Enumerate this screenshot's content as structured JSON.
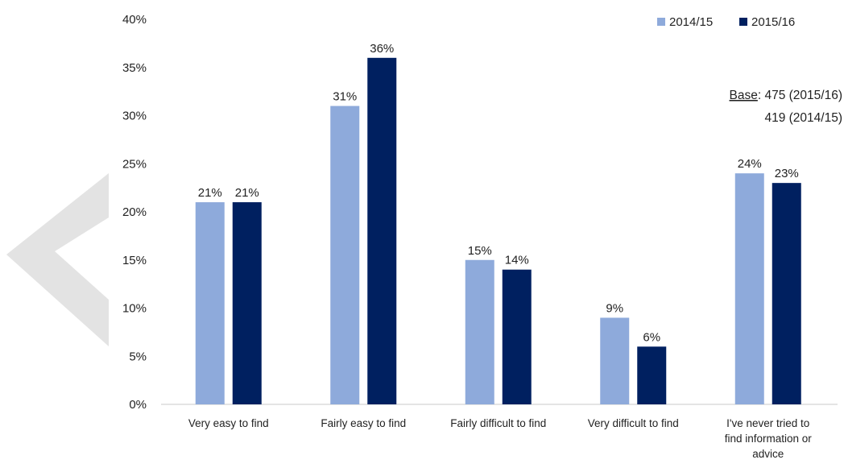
{
  "chart_data": {
    "type": "bar",
    "categories": [
      "Very easy to find",
      "Fairly easy to find",
      "Fairly difficult to find",
      "Very difficult to find",
      "I've never tried to find information or advice"
    ],
    "category_lines": [
      [
        "Very easy to find"
      ],
      [
        "Fairly easy to find"
      ],
      [
        "Fairly difficult to find"
      ],
      [
        "Very difficult to find"
      ],
      [
        "I've never tried to",
        "find information or",
        "advice"
      ]
    ],
    "series": [
      {
        "name": "2014/15",
        "values": [
          21,
          31,
          15,
          9,
          24
        ],
        "color": "#8eaadb"
      },
      {
        "name": "2015/16",
        "values": [
          21,
          36,
          14,
          6,
          23
        ],
        "color": "#002060"
      }
    ],
    "value_suffix": "%",
    "ylim": [
      0,
      40
    ],
    "yticks": [
      0,
      5,
      10,
      15,
      20,
      25,
      30,
      35,
      40
    ],
    "ytick_labels": [
      "0%",
      "5%",
      "10%",
      "15%",
      "20%",
      "25%",
      "30%",
      "35%",
      "40%"
    ],
    "title": "",
    "xlabel": "",
    "ylabel": "",
    "grid": false,
    "legend_position": "top-right",
    "annotation": {
      "base_label": "Base",
      "base_line1": ": 475 (2015/16)",
      "base_line2": "419 (2014/15)"
    },
    "decoration_color": "#e3e3e3"
  }
}
